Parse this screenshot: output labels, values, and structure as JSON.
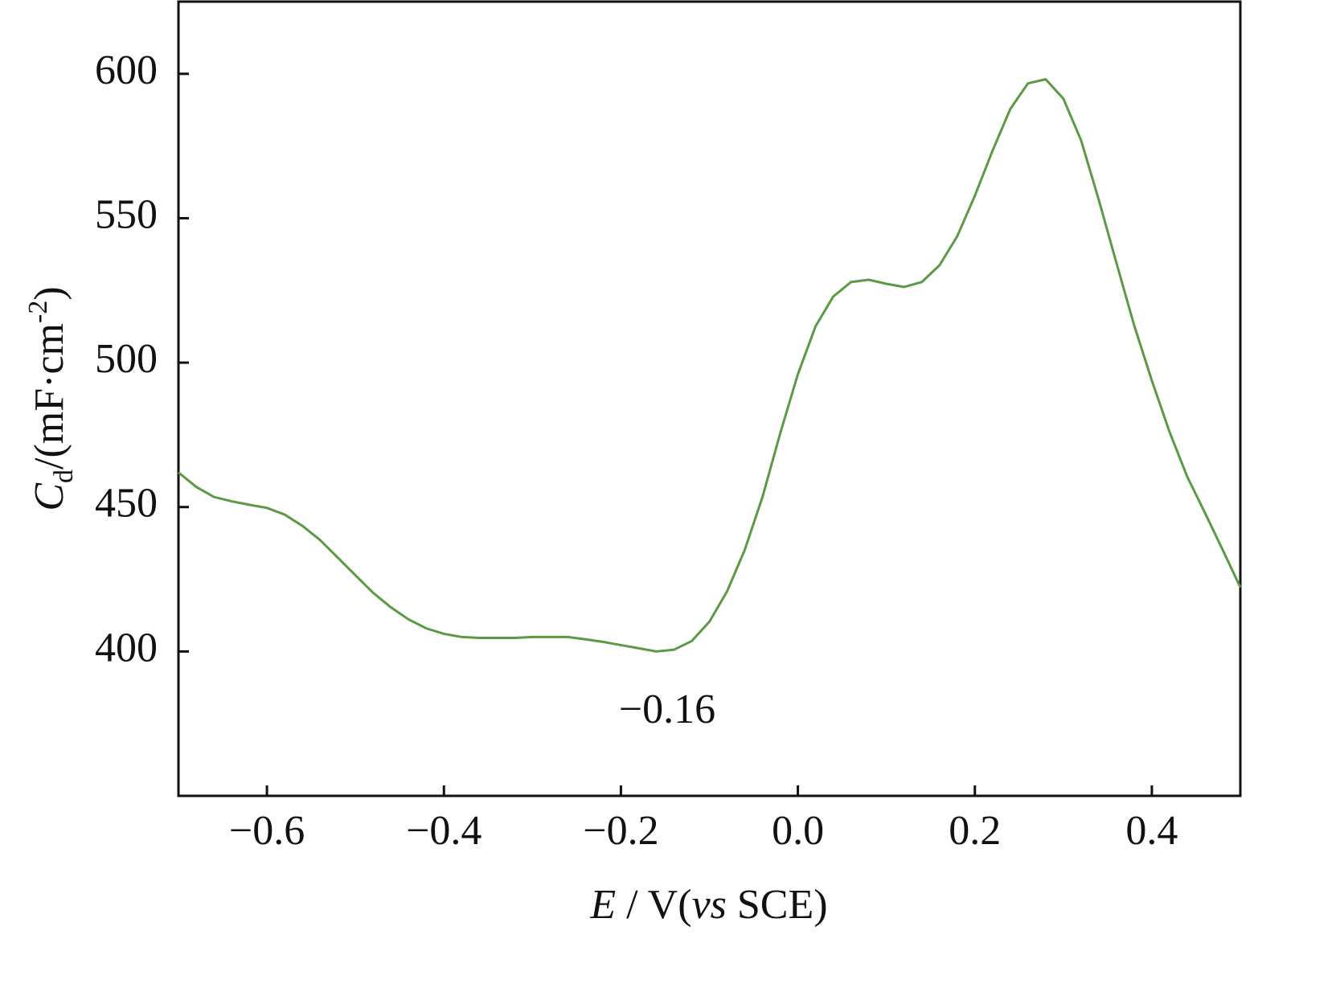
{
  "chart_data": {
    "type": "line",
    "xlabel": {
      "symbol": "E",
      "mid": " / V(",
      "italic": "vs",
      "end": " SCE)"
    },
    "ylabel": {
      "symbol": "C",
      "subscript": "d",
      "unit": "/(mF·cm",
      "exponent": "-2",
      "close": ")"
    },
    "annotation": "−0.16",
    "color": "#5b9a44",
    "x": [
      -0.7,
      -0.68,
      -0.66,
      -0.64,
      -0.62,
      -0.6,
      -0.58,
      -0.56,
      -0.54,
      -0.52,
      -0.5,
      -0.48,
      -0.46,
      -0.44,
      -0.42,
      -0.4,
      -0.38,
      -0.36,
      -0.34,
      -0.32,
      -0.3,
      -0.28,
      -0.26,
      -0.24,
      -0.22,
      -0.2,
      -0.18,
      -0.16,
      -0.14,
      -0.12,
      -0.1,
      -0.08,
      -0.06,
      -0.04,
      -0.02,
      0.0,
      0.02,
      0.04,
      0.06,
      0.08,
      0.1,
      0.12,
      0.14,
      0.16,
      0.18,
      0.2,
      0.22,
      0.24,
      0.26,
      0.28,
      0.3,
      0.32,
      0.34,
      0.36,
      0.38,
      0.4,
      0.42,
      0.44,
      0.46,
      0.48,
      0.5
    ],
    "values": [
      462,
      457,
      453.5,
      452,
      450.8,
      449.7,
      447.4,
      443.5,
      438.6,
      432.5,
      426.4,
      420.3,
      415.3,
      411.1,
      408,
      406.1,
      405,
      404.7,
      404.7,
      404.7,
      405,
      405,
      405,
      404.2,
      403.3,
      402.2,
      401.1,
      400,
      400.6,
      403.6,
      410.3,
      420.8,
      435.2,
      453.5,
      475.5,
      496,
      512.6,
      522.9,
      527.9,
      528.7,
      527.3,
      526.2,
      527.9,
      533.7,
      543.7,
      557.8,
      573.4,
      587.8,
      596.7,
      598.1,
      591.4,
      577,
      556.4,
      534.5,
      512.9,
      493.8,
      476,
      460.5,
      448,
      435.2,
      422.2
    ],
    "xlim": [
      -0.7,
      0.5
    ],
    "ylim": [
      350,
      625
    ],
    "xticks": [
      {
        "value": -0.6,
        "label": "−0.6"
      },
      {
        "value": -0.4,
        "label": "−0.4"
      },
      {
        "value": -0.2,
        "label": "−0.2"
      },
      {
        "value": 0,
        "label": "0.0"
      },
      0.2,
      0.4
    ],
    "yticks": [
      400,
      450,
      500,
      550,
      600
    ]
  }
}
